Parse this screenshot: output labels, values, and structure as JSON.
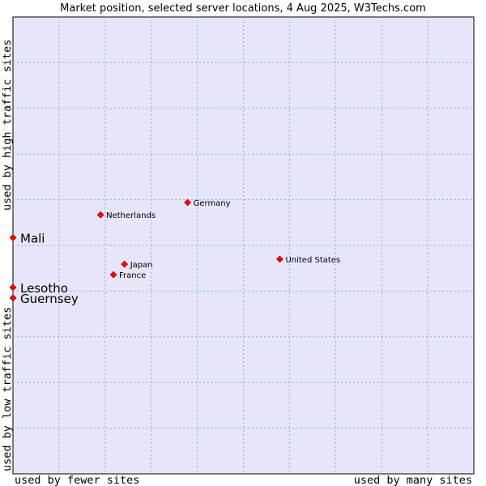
{
  "chart_data": {
    "type": "scatter",
    "title": "Market position, selected server locations, 4 Aug 2025, W3Techs.com",
    "xlabel_low": "used by fewer sites",
    "xlabel_high": "used by many sites",
    "ylabel_low": "used by low traffic sites",
    "ylabel_high": "used by high traffic sites",
    "xlim": [
      0,
      100
    ],
    "ylim": [
      0,
      100
    ],
    "grid": true,
    "background": "#e6e6fa",
    "marker_color": "#ff0000",
    "points": [
      {
        "label": "Germany",
        "x": 37.9,
        "y": 59.4,
        "highlight": false
      },
      {
        "label": "Netherlands",
        "x": 19.0,
        "y": 56.7,
        "highlight": false
      },
      {
        "label": "Mali",
        "x": 0.0,
        "y": 51.7,
        "highlight": true
      },
      {
        "label": "United States",
        "x": 57.9,
        "y": 47.0,
        "highlight": false
      },
      {
        "label": "Japan",
        "x": 24.2,
        "y": 45.9,
        "highlight": false
      },
      {
        "label": "France",
        "x": 21.8,
        "y": 43.6,
        "highlight": false
      },
      {
        "label": "Lesotho",
        "x": 0.0,
        "y": 40.8,
        "highlight": true
      },
      {
        "label": "Guernsey",
        "x": 0.0,
        "y": 38.5,
        "highlight": true
      }
    ]
  }
}
